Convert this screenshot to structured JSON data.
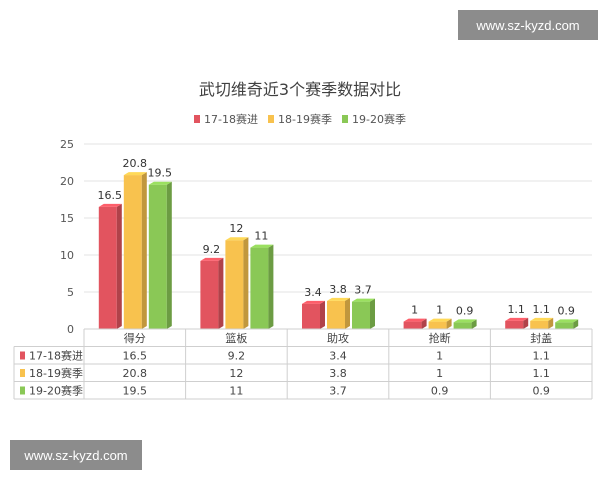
{
  "watermark_top": "www.sz-kyzd.com",
  "watermark_bottom": "www.sz-kyzd.com",
  "chart_data": {
    "type": "bar",
    "title": "武切维奇近3个赛季数据对比",
    "categories": [
      "得分",
      "篮板",
      "助攻",
      "抢断",
      "封盖"
    ],
    "series": [
      {
        "name": "17-18赛进",
        "values": [
          16.5,
          9.2,
          3.4,
          1,
          1.1
        ],
        "color": "#e2545f"
      },
      {
        "name": "18-19赛季",
        "values": [
          20.8,
          12,
          3.8,
          1,
          1.1
        ],
        "color": "#f8c24e"
      },
      {
        "name": "19-20赛季",
        "values": [
          19.5,
          11,
          3.7,
          0.9,
          0.9
        ],
        "color": "#8ac856"
      }
    ],
    "yticks": [
      0,
      5,
      10,
      15,
      20,
      25
    ],
    "ylim": [
      0,
      25
    ],
    "grid": true,
    "legend": "top",
    "data_table": true
  }
}
